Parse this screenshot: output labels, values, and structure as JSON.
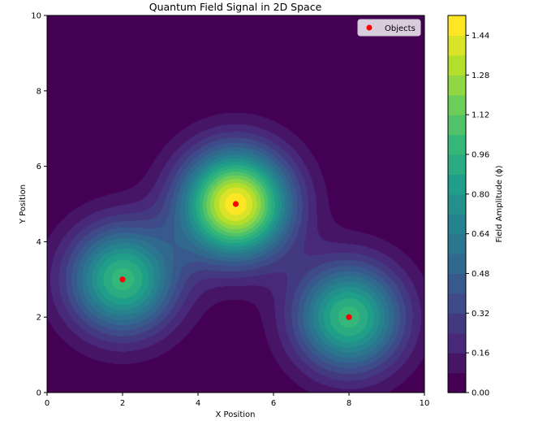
{
  "chart_data": {
    "type": "contour",
    "title": "Quantum Field Signal in 2D Space",
    "xlabel": "X Position",
    "ylabel": "Y Position",
    "xlim": [
      0,
      10
    ],
    "ylim": [
      0,
      10
    ],
    "xticks": [
      "0",
      "2",
      "4",
      "6",
      "8",
      "10"
    ],
    "yticks": [
      "0",
      "2",
      "4",
      "6",
      "8",
      "10"
    ],
    "grid": false,
    "colormap": "viridis",
    "field_sources": [
      {
        "x": 2,
        "y": 3,
        "amplitude": 1.0
      },
      {
        "x": 5,
        "y": 5,
        "amplitude": 1.5
      },
      {
        "x": 8,
        "y": 2,
        "amplitude": 1.0
      }
    ],
    "objects": {
      "name": "Objects",
      "color": "#ff0000",
      "x": [
        2,
        5,
        8
      ],
      "y": [
        3,
        5,
        2
      ]
    },
    "legend": {
      "position": "top-right",
      "entries": [
        "Objects"
      ]
    },
    "colorbar": {
      "label": "Field Amplitude (ϕ)",
      "min": 0.0,
      "max": 1.52,
      "tick_values": [
        0.0,
        0.16,
        0.32,
        0.48,
        0.64,
        0.8,
        0.96,
        1.12,
        1.28,
        1.44
      ],
      "tick_labels": [
        "0.00",
        "0.16",
        "0.32",
        "0.48",
        "0.64",
        "0.80",
        "0.96",
        "1.12",
        "1.28",
        "1.44"
      ]
    }
  }
}
